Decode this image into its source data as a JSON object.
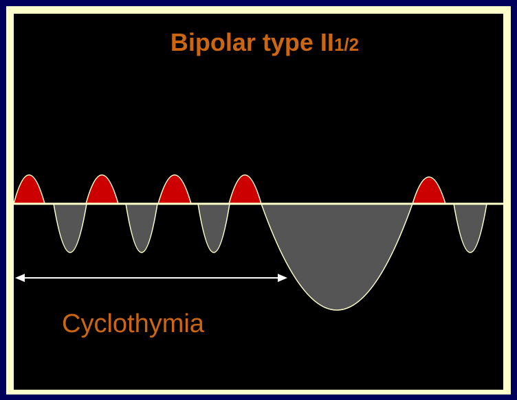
{
  "title": {
    "main": "Bipolar type II",
    "sub": "1/2"
  },
  "label": "Cyclothymia"
}
